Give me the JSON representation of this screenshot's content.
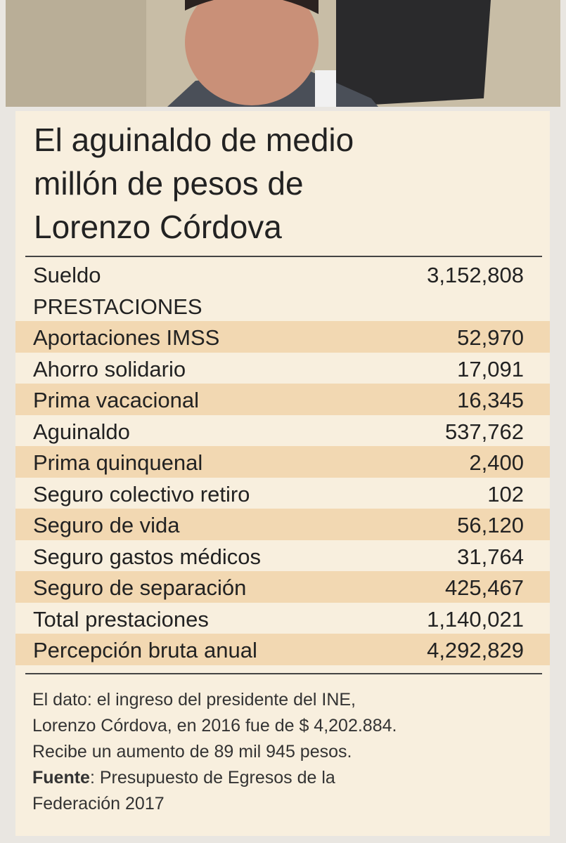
{
  "title": [
    "El aguinaldo de medio",
    "millón de pesos de",
    "Lorenzo Córdova"
  ],
  "table": {
    "rows": [
      [
        "Sueldo",
        "3,152,808"
      ],
      [
        "PRESTACIONES"
      ],
      [
        "Aportaciones IMSS",
        "52,970"
      ],
      [
        "Ahorro solidario",
        "17,091"
      ],
      [
        "Prima vacacional",
        "16,345"
      ],
      [
        "Aguinaldo",
        "537,762"
      ],
      [
        "Prima quinquenal",
        "2,400"
      ],
      [
        "Seguro colectivo retiro",
        "102"
      ],
      [
        "Seguro de vida",
        "56,120"
      ],
      [
        "Seguro gastos médicos",
        "31,764"
      ],
      [
        "Seguro de separación",
        "425,467"
      ],
      [
        "Total prestaciones",
        "1,140,021"
      ],
      [
        "Percepción bruta anual",
        "4,292,829"
      ]
    ]
  },
  "note": [
    "El dato: el ingreso del presidente del INE,",
    "Lorenzo Córdova, en 2016 fue de $ 4,202.884.",
    "Recibe un aumento de 89 mil 945 pesos."
  ],
  "source": {
    "label": "Fuente",
    "lines": [
      ": Presupuesto de Egresos de la",
      "Federación 2017"
    ]
  }
}
